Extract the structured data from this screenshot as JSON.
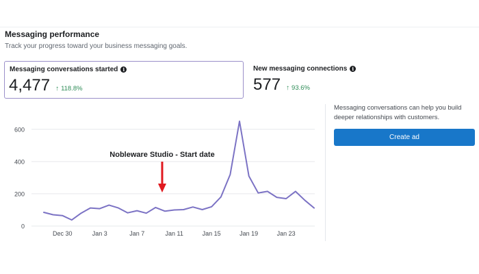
{
  "header": {
    "title": "Messaging performance",
    "subtitle": "Track your progress toward your business messaging goals."
  },
  "metrics": [
    {
      "label": "Messaging conversations started",
      "value": "4,477",
      "change": "118.8%",
      "selected": true
    },
    {
      "label": "New messaging connections",
      "value": "577",
      "change": "93.6%",
      "selected": false
    }
  ],
  "icons": {
    "info": "info-icon",
    "trend": "up-arrow-icon",
    "marker": "down-arrow-marker"
  },
  "colors": {
    "line": "#7b72c4",
    "change_positive": "#2e8c57",
    "marker": "#e0191f",
    "button": "#1877c9",
    "selected_border": "#9a8fc9"
  },
  "side_panel": {
    "text": "Messaging conversations can help you build deeper relationships with customers.",
    "button_label": "Create ad"
  },
  "chart_data": {
    "type": "line",
    "series": [
      {
        "values": [
          85,
          70,
          65,
          38,
          80,
          112,
          108,
          130,
          112,
          82,
          95,
          80,
          115,
          92,
          100,
          102,
          118,
          102,
          120,
          180,
          320,
          650,
          310,
          205,
          215,
          178,
          170,
          215,
          160,
          112
        ]
      }
    ],
    "x_tick_labels": [
      "Dec 30",
      "Jan 3",
      "Jan 7",
      "Jan 11",
      "Jan 15",
      "Jan 19",
      "Jan 23"
    ],
    "x_tick_indices": [
      2,
      6,
      10,
      14,
      18,
      22,
      26
    ],
    "y_ticks": [
      0,
      200,
      400,
      600
    ],
    "ylim": [
      0,
      650
    ],
    "grid": true,
    "annotation": {
      "text": "Nobleware Studio - Start date",
      "index": 12.7
    }
  }
}
